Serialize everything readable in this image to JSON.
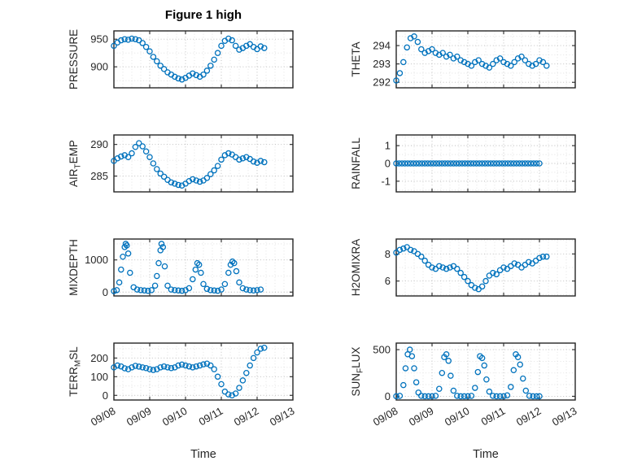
{
  "title": "Figure 1 high",
  "xlabel": "Time",
  "axes": {
    "xlim": [
      0,
      5
    ],
    "xticks": [
      0,
      1,
      2,
      3,
      4,
      5
    ],
    "xticklabels": [
      "09/08",
      "09/09",
      "09/10",
      "09/11",
      "09/12",
      "09/13"
    ],
    "marker_color": "#0072BD",
    "grid": "on",
    "minor_grid": "on"
  },
  "chart_data": [
    {
      "name": "PRESSURE",
      "type": "scatter",
      "ylabel_pre": "PRESSURE",
      "ylabel_sub": "",
      "ylabel_post": "",
      "yticks": [
        900,
        950
      ],
      "ylim": [
        862,
        965
      ],
      "yminor_div": 2,
      "x": [
        0,
        0.1,
        0.2,
        0.3,
        0.4,
        0.5,
        0.6,
        0.7,
        0.8,
        0.9,
        1,
        1.1,
        1.2,
        1.3,
        1.4,
        1.5,
        1.6,
        1.7,
        1.8,
        1.9,
        2,
        2.1,
        2.2,
        2.3,
        2.4,
        2.5,
        2.6,
        2.7,
        2.8,
        2.9,
        3,
        3.1,
        3.2,
        3.3,
        3.4,
        3.5,
        3.6,
        3.7,
        3.8,
        3.9,
        4,
        4.1,
        4.2
      ],
      "y": [
        938,
        944,
        948,
        950,
        949,
        951,
        950,
        948,
        943,
        936,
        928,
        918,
        910,
        902,
        896,
        890,
        886,
        882,
        879,
        877,
        880,
        884,
        888,
        885,
        882,
        886,
        893,
        902,
        913,
        925,
        938,
        947,
        951,
        948,
        938,
        931,
        934,
        938,
        941,
        936,
        932,
        937,
        934
      ]
    },
    {
      "name": "THETA",
      "type": "scatter",
      "ylabel_pre": "THETA",
      "ylabel_sub": "",
      "ylabel_post": "",
      "yticks": [
        292,
        293,
        294
      ],
      "ylim": [
        291.7,
        294.8
      ],
      "yminor_div": 2,
      "x": [
        0,
        0.1,
        0.2,
        0.3,
        0.4,
        0.5,
        0.6,
        0.7,
        0.8,
        0.9,
        1,
        1.1,
        1.2,
        1.3,
        1.4,
        1.5,
        1.6,
        1.7,
        1.8,
        1.9,
        2,
        2.1,
        2.2,
        2.3,
        2.4,
        2.5,
        2.6,
        2.7,
        2.8,
        2.9,
        3,
        3.1,
        3.2,
        3.3,
        3.4,
        3.5,
        3.6,
        3.7,
        3.8,
        3.9,
        4,
        4.1,
        4.2
      ],
      "y": [
        292.1,
        292.5,
        293.1,
        293.9,
        294.4,
        294.5,
        294.2,
        293.8,
        293.6,
        293.7,
        293.8,
        293.6,
        293.5,
        293.6,
        293.4,
        293.5,
        293.3,
        293.4,
        293.2,
        293.1,
        293,
        292.9,
        293.1,
        293.2,
        293,
        292.9,
        292.8,
        293,
        293.2,
        293.3,
        293.1,
        293,
        292.9,
        293.1,
        293.3,
        293.4,
        293.2,
        293,
        292.9,
        293,
        293.2,
        293.1,
        292.9
      ]
    },
    {
      "name": "AIR_TEMP",
      "type": "scatter",
      "ylabel_pre": "AIR",
      "ylabel_sub": "T",
      "ylabel_post": "EMP",
      "yticks": [
        285,
        290
      ],
      "ylim": [
        282.5,
        291.5
      ],
      "yminor_div": 2,
      "x": [
        0,
        0.1,
        0.2,
        0.3,
        0.4,
        0.5,
        0.6,
        0.7,
        0.8,
        0.9,
        1,
        1.1,
        1.2,
        1.3,
        1.4,
        1.5,
        1.6,
        1.7,
        1.8,
        1.9,
        2,
        2.1,
        2.2,
        2.3,
        2.4,
        2.5,
        2.6,
        2.7,
        2.8,
        2.9,
        3,
        3.1,
        3.2,
        3.3,
        3.4,
        3.5,
        3.6,
        3.7,
        3.8,
        3.9,
        4,
        4.1,
        4.2
      ],
      "y": [
        287.4,
        287.8,
        288.1,
        288.3,
        288,
        288.6,
        289.6,
        290.2,
        289.7,
        288.9,
        288,
        287,
        286.1,
        285.4,
        284.9,
        284.4,
        284,
        283.8,
        283.6,
        283.5,
        283.8,
        284.2,
        284.5,
        284.3,
        284.1,
        284.3,
        284.7,
        285.3,
        285.9,
        286.6,
        287.6,
        288.3,
        288.6,
        288.4,
        288,
        287.6,
        287.8,
        288,
        287.7,
        287.3,
        287.1,
        287.4,
        287.2
      ]
    },
    {
      "name": "RAINFALL",
      "type": "scatter",
      "ylabel_pre": "RAINFALL",
      "ylabel_sub": "",
      "ylabel_post": "",
      "yticks": [
        -1,
        0,
        1
      ],
      "ylim": [
        -1.6,
        1.6
      ],
      "yminor_div": 2,
      "x": [
        0,
        0.08,
        0.16,
        0.24,
        0.32,
        0.4,
        0.48,
        0.56,
        0.64,
        0.72,
        0.8,
        0.88,
        0.96,
        1.04,
        1.12,
        1.2,
        1.28,
        1.36,
        1.44,
        1.52,
        1.6,
        1.68,
        1.76,
        1.84,
        1.92,
        2,
        2.08,
        2.16,
        2.24,
        2.32,
        2.4,
        2.48,
        2.56,
        2.64,
        2.72,
        2.8,
        2.88,
        2.96,
        3.04,
        3.12,
        3.2,
        3.28,
        3.36,
        3.44,
        3.52,
        3.6,
        3.68,
        3.76,
        3.84,
        3.92,
        4
      ],
      "y": [
        0,
        0,
        0,
        0,
        0,
        0,
        0,
        0,
        0,
        0,
        0,
        0,
        0,
        0,
        0,
        0,
        0,
        0,
        0,
        0,
        0,
        0,
        0,
        0,
        0,
        0,
        0,
        0,
        0,
        0,
        0,
        0,
        0,
        0,
        0,
        0,
        0,
        0,
        0,
        0,
        0,
        0,
        0,
        0,
        0,
        0,
        0,
        0,
        0,
        0,
        0
      ]
    },
    {
      "name": "MIXDEPTH",
      "type": "scatter",
      "ylabel_pre": "MIXDEPTH",
      "ylabel_sub": "",
      "ylabel_post": "",
      "yticks": [
        0,
        1000
      ],
      "ylim": [
        -120,
        1650
      ],
      "yminor_div": 2,
      "x": [
        0,
        0.08,
        0.15,
        0.2,
        0.25,
        0.3,
        0.33,
        0.36,
        0.4,
        0.45,
        0.55,
        0.65,
        0.75,
        0.85,
        0.95,
        1.05,
        1.15,
        1.2,
        1.25,
        1.3,
        1.33,
        1.37,
        1.42,
        1.5,
        1.6,
        1.7,
        1.8,
        1.9,
        2,
        2.1,
        2.2,
        2.28,
        2.33,
        2.38,
        2.43,
        2.5,
        2.6,
        2.7,
        2.8,
        2.9,
        3,
        3.1,
        3.2,
        3.26,
        3.31,
        3.36,
        3.42,
        3.5,
        3.6,
        3.7,
        3.8,
        3.9,
        4,
        4.1
      ],
      "y": [
        30,
        60,
        300,
        700,
        1100,
        1400,
        1500,
        1450,
        1200,
        600,
        150,
        80,
        60,
        50,
        40,
        60,
        200,
        500,
        900,
        1300,
        1500,
        1400,
        800,
        200,
        80,
        60,
        50,
        40,
        60,
        120,
        400,
        700,
        900,
        850,
        600,
        250,
        100,
        60,
        50,
        40,
        80,
        250,
        600,
        850,
        950,
        900,
        650,
        300,
        120,
        80,
        60,
        50,
        60,
        80
      ]
    },
    {
      "name": "H2OMIXRA",
      "type": "scatter",
      "ylabel_pre": "H2OMIXRA",
      "ylabel_sub": "",
      "ylabel_post": "",
      "yticks": [
        6,
        8
      ],
      "ylim": [
        4.9,
        9.1
      ],
      "yminor_div": 2,
      "x": [
        0,
        0.1,
        0.2,
        0.3,
        0.4,
        0.5,
        0.6,
        0.7,
        0.8,
        0.9,
        1,
        1.1,
        1.2,
        1.3,
        1.4,
        1.5,
        1.6,
        1.7,
        1.8,
        1.9,
        2,
        2.1,
        2.2,
        2.3,
        2.4,
        2.5,
        2.6,
        2.7,
        2.8,
        2.9,
        3,
        3.1,
        3.2,
        3.3,
        3.4,
        3.5,
        3.6,
        3.7,
        3.8,
        3.9,
        4,
        4.1,
        4.2
      ],
      "y": [
        8.1,
        8.3,
        8.4,
        8.5,
        8.3,
        8.2,
        8,
        7.8,
        7.5,
        7.2,
        7,
        6.9,
        7.1,
        7,
        6.9,
        7,
        7.1,
        6.9,
        6.6,
        6.3,
        6,
        5.7,
        5.5,
        5.4,
        5.6,
        6,
        6.4,
        6.6,
        6.5,
        6.8,
        7,
        6.9,
        7.1,
        7.3,
        7.2,
        7,
        7.2,
        7.4,
        7.3,
        7.5,
        7.7,
        7.8,
        7.8
      ]
    },
    {
      "name": "TERR_MSL",
      "type": "scatter",
      "ylabel_pre": "TERR",
      "ylabel_sub": "M",
      "ylabel_post": "SL",
      "yticks": [
        0,
        100,
        200
      ],
      "ylim": [
        -25,
        280
      ],
      "yminor_div": 2,
      "x": [
        0,
        0.1,
        0.2,
        0.3,
        0.4,
        0.5,
        0.6,
        0.7,
        0.8,
        0.9,
        1,
        1.1,
        1.2,
        1.3,
        1.4,
        1.5,
        1.6,
        1.7,
        1.8,
        1.9,
        2,
        2.1,
        2.2,
        2.3,
        2.4,
        2.5,
        2.6,
        2.7,
        2.8,
        2.9,
        3,
        3.1,
        3.2,
        3.3,
        3.4,
        3.5,
        3.6,
        3.7,
        3.8,
        3.9,
        4,
        4.1,
        4.2
      ],
      "y": [
        150,
        160,
        155,
        145,
        140,
        150,
        158,
        154,
        150,
        146,
        140,
        136,
        140,
        150,
        155,
        150,
        146,
        150,
        160,
        165,
        160,
        155,
        150,
        155,
        160,
        166,
        170,
        160,
        140,
        100,
        60,
        20,
        5,
        0,
        10,
        40,
        80,
        120,
        160,
        200,
        230,
        250,
        255
      ]
    },
    {
      "name": "SUN_FLUX",
      "type": "scatter",
      "ylabel_pre": "SUN",
      "ylabel_sub": "F",
      "ylabel_post": "LUX",
      "yticks": [
        0,
        500
      ],
      "ylim": [
        -40,
        570
      ],
      "yminor_div": 4,
      "x": [
        0,
        0.1,
        0.2,
        0.26,
        0.32,
        0.38,
        0.44,
        0.5,
        0.56,
        0.62,
        0.7,
        0.8,
        0.9,
        1,
        1.1,
        1.2,
        1.28,
        1.34,
        1.4,
        1.46,
        1.52,
        1.6,
        1.7,
        1.8,
        1.9,
        2,
        2.1,
        2.2,
        2.28,
        2.34,
        2.4,
        2.46,
        2.52,
        2.6,
        2.7,
        2.8,
        2.9,
        3,
        3.1,
        3.2,
        3.28,
        3.34,
        3.4,
        3.46,
        3.54,
        3.62,
        3.72,
        3.82,
        3.92,
        4
      ],
      "y": [
        0,
        5,
        120,
        300,
        450,
        500,
        430,
        300,
        150,
        40,
        5,
        0,
        0,
        0,
        5,
        80,
        250,
        420,
        450,
        380,
        220,
        60,
        5,
        0,
        0,
        0,
        5,
        90,
        260,
        430,
        410,
        330,
        180,
        50,
        5,
        0,
        0,
        0,
        10,
        100,
        280,
        450,
        420,
        340,
        190,
        60,
        5,
        0,
        0,
        0
      ]
    }
  ]
}
